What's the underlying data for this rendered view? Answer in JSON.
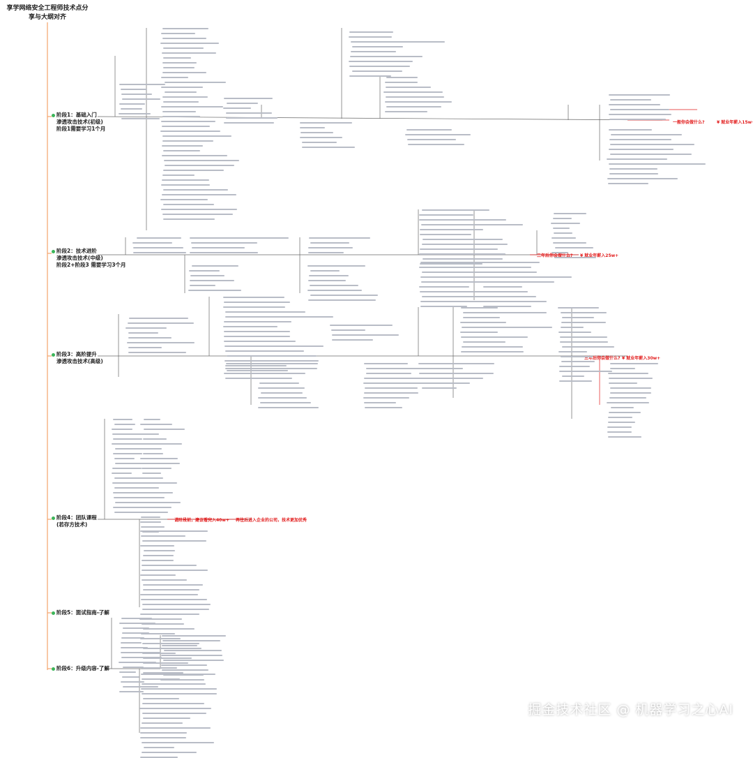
{
  "title": "享学网络安全工程师技术点分享与大纲对齐",
  "stages": [
    {
      "line1": "阶段1：基础入门",
      "line2": "渗透攻击技术(初级)",
      "line3": "阶段1需要学习1个月"
    },
    {
      "line1": "阶段2：技术进阶",
      "line2": "渗透攻击技术(中级)",
      "line3": "阶段2+阶段3 需要学习3个月"
    },
    {
      "line1": "阶段3：高阶提升",
      "line2": "渗透攻击技术(高级)",
      "line3": ""
    },
    {
      "line1": "阶段4：团队课程",
      "line2": "(若存方技术)",
      "line3": ""
    },
    {
      "line1": "阶段5：面试指南-了解",
      "line2": "",
      "line3": ""
    },
    {
      "line1": "阶段6：升级内容-了解",
      "line2": "",
      "line3": ""
    }
  ],
  "red_labels": {
    "s1_question": "一般你会做什么?",
    "s1_salary": "¥ 就业年薪入15w+",
    "s2_question": "二年后你会做什么?",
    "s2_salary": "¥ 就业年薪入25w+",
    "s3_question": "三年后你会做什么?",
    "s3_salary": "¥ 就业年薪入30w+",
    "s4_note1": "请阶段前，建议看完入40w+",
    "s4_note2": "再往后进入企业的公司，技术更加优秀"
  },
  "watermark": "掘金技术社区 @ 机器学习之心AI",
  "colors": {
    "spine": "#f4a36b",
    "branch": "#555555",
    "red": "#e21b1b",
    "stage_dot": "#3cb55a",
    "icon": "#3a6fd8"
  }
}
